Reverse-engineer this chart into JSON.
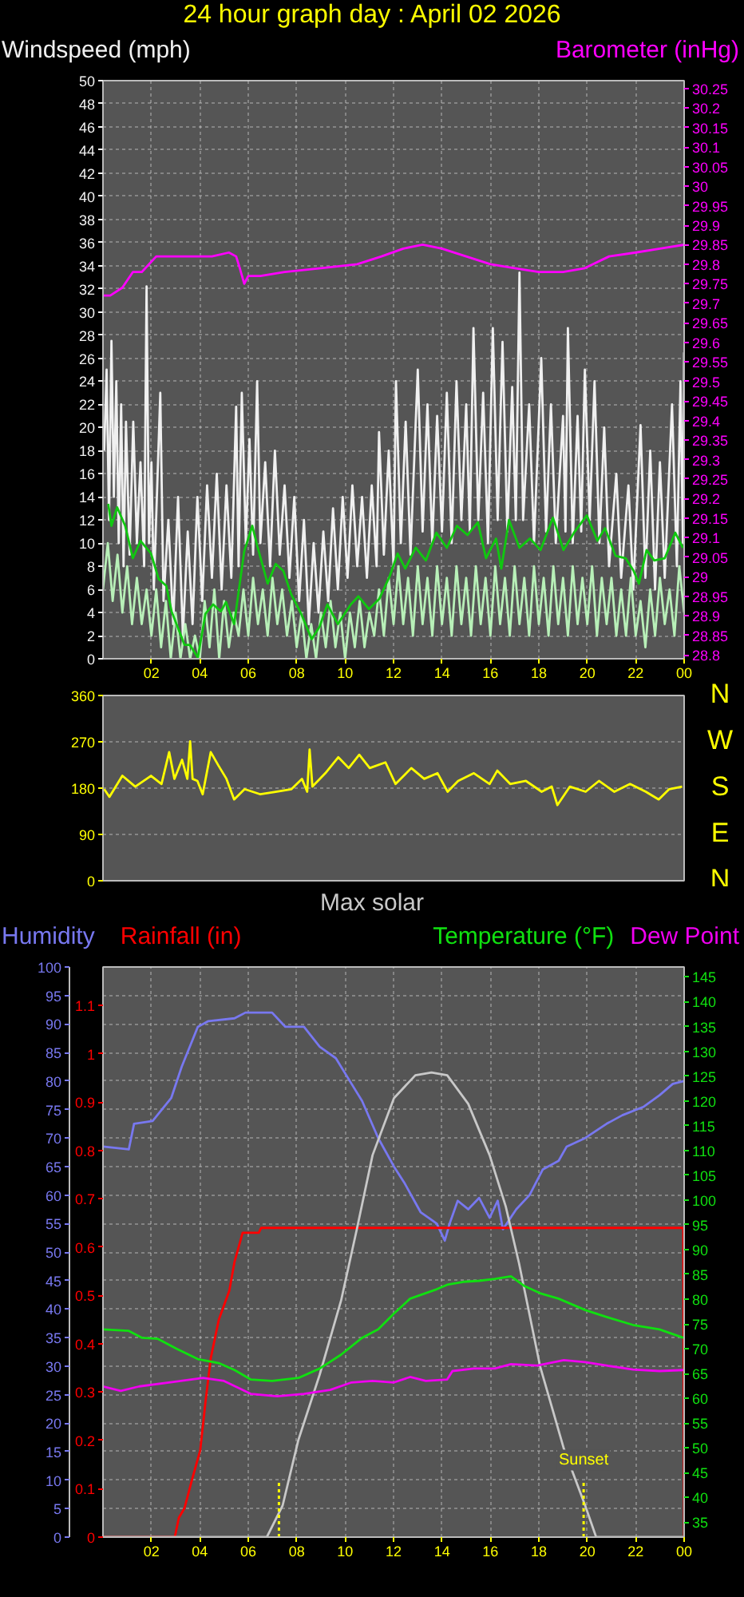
{
  "chart_data": [
    {
      "type": "line",
      "title": "24 hour graph day : April 02 2026",
      "ylabel": "Windspeed (mph)",
      "y2label": "Barometer (inHg)",
      "xlim": [
        "2026-04-02T00:00",
        "2026-04-03T00:00"
      ],
      "xticks": [
        {
          "value": "2026-04-02T02:00",
          "label": "02"
        },
        {
          "value": "2026-04-02T04:00",
          "label": "04"
        },
        {
          "value": "2026-04-02T06:00",
          "label": "06"
        },
        {
          "value": "2026-04-02T08:00",
          "label": "08"
        },
        {
          "value": "2026-04-02T10:00",
          "label": "10"
        },
        {
          "value": "2026-04-02T12:00",
          "label": "12"
        },
        {
          "value": "2026-04-02T14:00",
          "label": "14"
        },
        {
          "value": "2026-04-02T16:00",
          "label": "16"
        },
        {
          "value": "2026-04-02T18:00",
          "label": "18"
        },
        {
          "value": "2026-04-02T20:00",
          "label": "20"
        },
        {
          "value": "2026-04-02T22:00",
          "label": "22"
        },
        {
          "value": "2026-04-03T00:00",
          "label": "00"
        }
      ],
      "ylim": [
        0,
        50
      ],
      "yticks": [
        0,
        2,
        4,
        6,
        8,
        10,
        12,
        14,
        16,
        18,
        20,
        22,
        24,
        26,
        28,
        30,
        32,
        34,
        36,
        38,
        40,
        42,
        44,
        46,
        48,
        50
      ],
      "y2lim": [
        28.79,
        30.27
      ],
      "y2ticks": [
        28.8,
        28.85,
        28.9,
        28.95,
        29,
        29.05,
        29.1,
        29.15,
        29.2,
        29.25,
        29.3,
        29.35,
        29.4,
        29.45,
        29.5,
        29.55,
        29.6,
        29.65,
        29.7,
        29.75,
        29.8,
        29.85,
        29.9,
        29.95,
        30,
        30.05,
        30.1,
        30.15,
        30.2,
        30.25
      ],
      "grid": true,
      "series": [
        {
          "color": "#f0f0f0",
          "x": [
            "2026-04-02T00:03",
            "2026-04-02T00:09",
            "2026-04-02T00:15",
            "2026-04-02T00:21",
            "2026-04-02T00:27",
            "2026-04-02T00:33",
            "2026-04-02T00:39",
            "2026-04-02T00:45",
            "2026-04-02T00:51",
            "2026-04-02T00:57",
            "2026-04-02T01:06",
            "2026-04-02T01:15",
            "2026-04-02T01:24",
            "2026-04-02T01:33",
            "2026-04-02T01:42",
            "2026-04-02T01:48",
            "2026-04-02T01:54",
            "2026-04-02T02:00",
            "2026-04-02T02:06",
            "2026-04-02T02:22",
            "2026-04-02T02:30",
            "2026-04-02T02:42",
            "2026-04-02T02:54",
            "2026-04-02T03:06",
            "2026-04-02T03:18",
            "2026-04-02T03:30",
            "2026-04-02T03:42",
            "2026-04-02T03:54",
            "2026-04-02T04:06",
            "2026-04-02T04:18",
            "2026-04-02T04:30",
            "2026-04-02T04:42",
            "2026-04-02T04:54",
            "2026-04-02T05:06",
            "2026-04-02T05:18",
            "2026-04-02T05:30",
            "2026-04-02T05:36",
            "2026-04-02T05:44",
            "2026-04-02T05:54",
            "2026-04-02T06:03",
            "2026-04-02T06:12",
            "2026-04-02T06:22",
            "2026-04-02T06:30",
            "2026-04-02T06:42",
            "2026-04-02T06:54",
            "2026-04-02T07:06",
            "2026-04-02T07:18",
            "2026-04-02T07:30",
            "2026-04-02T07:42",
            "2026-04-02T07:54",
            "2026-04-02T08:06",
            "2026-04-02T08:18",
            "2026-04-02T08:30",
            "2026-04-02T08:42",
            "2026-04-02T08:54",
            "2026-04-02T09:06",
            "2026-04-02T09:18",
            "2026-04-02T09:30",
            "2026-04-02T09:42",
            "2026-04-02T09:54",
            "2026-04-02T10:06",
            "2026-04-02T10:18",
            "2026-04-02T10:30",
            "2026-04-02T10:42",
            "2026-04-02T10:54",
            "2026-04-02T11:06",
            "2026-04-02T11:18",
            "2026-04-02T11:24",
            "2026-04-02T11:36",
            "2026-04-02T11:48",
            "2026-04-02T12:00",
            "2026-04-02T12:06",
            "2026-04-02T12:18",
            "2026-04-02T12:30",
            "2026-04-02T12:42",
            "2026-04-02T13:00",
            "2026-04-02T13:12",
            "2026-04-02T13:24",
            "2026-04-02T13:36",
            "2026-04-02T13:48",
            "2026-04-02T14:00",
            "2026-04-02T14:12",
            "2026-04-02T14:24",
            "2026-04-02T14:36",
            "2026-04-02T14:48",
            "2026-04-02T15:00",
            "2026-04-02T15:09",
            "2026-04-02T15:18",
            "2026-04-02T15:30",
            "2026-04-02T15:42",
            "2026-04-02T15:54",
            "2026-04-02T16:06",
            "2026-04-02T16:18",
            "2026-04-02T16:30",
            "2026-04-02T16:42",
            "2026-04-02T16:54",
            "2026-04-02T17:03",
            "2026-04-02T17:12",
            "2026-04-02T17:21",
            "2026-04-02T17:36",
            "2026-04-02T17:48",
            "2026-04-02T18:06",
            "2026-04-02T18:18",
            "2026-04-02T18:30",
            "2026-04-02T18:42",
            "2026-04-02T19:00",
            "2026-04-02T19:06",
            "2026-04-02T19:12",
            "2026-04-02T19:24",
            "2026-04-02T19:36",
            "2026-04-02T19:45",
            "2026-04-02T19:54",
            "2026-04-02T20:06",
            "2026-04-02T20:18",
            "2026-04-02T20:30",
            "2026-04-02T20:42",
            "2026-04-02T20:54",
            "2026-04-02T21:12",
            "2026-04-02T21:24",
            "2026-04-02T21:42",
            "2026-04-02T21:54",
            "2026-04-02T22:12",
            "2026-04-02T22:24",
            "2026-04-02T22:36",
            "2026-04-02T22:48",
            "2026-04-02T23:00",
            "2026-04-02T23:12",
            "2026-04-02T23:30",
            "2026-04-02T23:42",
            "2026-04-02T23:51",
            "2026-04-02T23:57",
            "2026-04-03T00:00"
          ],
          "values": [
            18,
            25,
            12,
            27.5,
            14,
            24,
            10,
            22,
            8,
            20.5,
            9,
            20.5,
            10,
            17,
            8,
            32.2,
            10,
            17,
            6,
            23,
            5,
            12,
            3,
            14,
            2,
            11,
            3,
            14,
            5,
            15,
            7,
            16,
            6,
            15,
            7,
            21.8,
            8,
            23,
            10,
            19,
            9,
            24,
            10,
            17,
            8,
            18,
            9,
            15,
            7,
            14,
            5,
            12,
            3,
            10,
            4,
            11,
            5,
            13,
            6,
            14,
            7,
            15,
            8,
            14,
            7,
            15,
            8,
            19.6,
            9,
            18,
            8,
            24,
            10,
            20.5,
            9,
            25,
            11,
            22,
            10,
            21,
            11,
            23,
            10,
            24,
            12,
            22,
            11,
            28.6,
            12,
            23,
            10,
            28.6,
            12,
            27.4,
            11,
            23.5,
            12,
            33.4,
            12,
            22,
            10,
            26,
            11,
            22,
            10,
            21,
            11,
            28.6,
            10,
            21,
            11,
            25,
            12,
            24,
            10,
            20,
            8,
            16,
            7,
            15,
            6,
            20.2,
            7,
            18,
            6,
            17,
            7,
            22,
            8,
            24,
            10,
            26.5
          ]
        },
        {
          "color": "#b8f0b8",
          "x": [
            "2026-04-02T00:00",
            "2026-04-02T00:12",
            "2026-04-02T00:24",
            "2026-04-02T00:36",
            "2026-04-02T00:48",
            "2026-04-02T01:00",
            "2026-04-02T01:12",
            "2026-04-02T01:24",
            "2026-04-02T01:36",
            "2026-04-02T01:48",
            "2026-04-02T02:00",
            "2026-04-02T02:12",
            "2026-04-02T02:24",
            "2026-04-02T02:36",
            "2026-04-02T02:48",
            "2026-04-02T03:00",
            "2026-04-02T03:12",
            "2026-04-02T03:24",
            "2026-04-02T03:36",
            "2026-04-02T03:48",
            "2026-04-02T04:00",
            "2026-04-02T04:12",
            "2026-04-02T04:24",
            "2026-04-02T04:36",
            "2026-04-02T04:48",
            "2026-04-02T05:00",
            "2026-04-02T05:12",
            "2026-04-02T05:24",
            "2026-04-02T05:36",
            "2026-04-02T05:48",
            "2026-04-02T06:00",
            "2026-04-02T06:12",
            "2026-04-02T06:24",
            "2026-04-02T06:36",
            "2026-04-02T06:48",
            "2026-04-02T07:00",
            "2026-04-02T07:12",
            "2026-04-02T07:24",
            "2026-04-02T07:36",
            "2026-04-02T07:48",
            "2026-04-02T08:00",
            "2026-04-02T08:12",
            "2026-04-02T08:24",
            "2026-04-02T08:36",
            "2026-04-02T08:48",
            "2026-04-02T09:00",
            "2026-04-02T09:12",
            "2026-04-02T09:24",
            "2026-04-02T09:36",
            "2026-04-02T09:48",
            "2026-04-02T10:00",
            "2026-04-02T10:12",
            "2026-04-02T10:24",
            "2026-04-02T10:36",
            "2026-04-02T10:48",
            "2026-04-02T11:00",
            "2026-04-02T11:12",
            "2026-04-02T11:24",
            "2026-04-02T11:36",
            "2026-04-02T11:48",
            "2026-04-02T12:00",
            "2026-04-02T12:12",
            "2026-04-02T12:24",
            "2026-04-02T12:36",
            "2026-04-02T12:48",
            "2026-04-02T13:00",
            "2026-04-02T13:12",
            "2026-04-02T13:24",
            "2026-04-02T13:36",
            "2026-04-02T13:48",
            "2026-04-02T14:00",
            "2026-04-02T14:12",
            "2026-04-02T14:24",
            "2026-04-02T14:36",
            "2026-04-02T14:48",
            "2026-04-02T15:00",
            "2026-04-02T15:12",
            "2026-04-02T15:24",
            "2026-04-02T15:36",
            "2026-04-02T15:48",
            "2026-04-02T16:00",
            "2026-04-02T16:12",
            "2026-04-02T16:24",
            "2026-04-02T16:36",
            "2026-04-02T16:48",
            "2026-04-02T17:00",
            "2026-04-02T17:12",
            "2026-04-02T17:24",
            "2026-04-02T17:36",
            "2026-04-02T17:48",
            "2026-04-02T18:00",
            "2026-04-02T18:12",
            "2026-04-02T18:24",
            "2026-04-02T18:36",
            "2026-04-02T18:48",
            "2026-04-02T19:00",
            "2026-04-02T19:12",
            "2026-04-02T19:24",
            "2026-04-02T19:36",
            "2026-04-02T19:48",
            "2026-04-02T20:00",
            "2026-04-02T20:12",
            "2026-04-02T20:24",
            "2026-04-02T20:36",
            "2026-04-02T20:48",
            "2026-04-02T21:00",
            "2026-04-02T21:12",
            "2026-04-02T21:24",
            "2026-04-02T21:36",
            "2026-04-02T21:48",
            "2026-04-02T22:00",
            "2026-04-02T22:12",
            "2026-04-02T22:24",
            "2026-04-02T22:36",
            "2026-04-02T22:48",
            "2026-04-02T23:00",
            "2026-04-02T23:12",
            "2026-04-02T23:24",
            "2026-04-02T23:36",
            "2026-04-02T23:48",
            "2026-04-03T00:00"
          ],
          "values": [
            6,
            10,
            5,
            9,
            4,
            8,
            3,
            7,
            3,
            6,
            2,
            6,
            1,
            5,
            0,
            4,
            0,
            3,
            0,
            2,
            0,
            5,
            1,
            6,
            0,
            5,
            1,
            4,
            2,
            6,
            2,
            7,
            3,
            6,
            2,
            7,
            3,
            6,
            2,
            5,
            1,
            4,
            0,
            3,
            0,
            4,
            1,
            5,
            1,
            4,
            0,
            4,
            1,
            5,
            1,
            4,
            2,
            6,
            2,
            7,
            3,
            8,
            3,
            7,
            2,
            8,
            3,
            7,
            2,
            8,
            3,
            7,
            2,
            8,
            3,
            7,
            2,
            8,
            3,
            7,
            2,
            8,
            3,
            7,
            2,
            8,
            3,
            7,
            2,
            8,
            3,
            7,
            2,
            8,
            3,
            7,
            2,
            8,
            3,
            7,
            3,
            8,
            2,
            7,
            3,
            7,
            2,
            6,
            2,
            7,
            2,
            5,
            1,
            6,
            2,
            7,
            3,
            6,
            2,
            8,
            4
          ]
        },
        {
          "color": "#10c810",
          "x": [
            "2026-04-02T00:13",
            "2026-04-02T00:21",
            "2026-04-02T00:35",
            "2026-04-02T00:55",
            "2026-04-02T01:14",
            "2026-04-02T01:33",
            "2026-04-02T01:59",
            "2026-04-02T02:18",
            "2026-04-02T02:37",
            "2026-04-02T02:50",
            "2026-04-02T03:10",
            "2026-04-02T03:22",
            "2026-04-02T03:35",
            "2026-04-02T03:55",
            "2026-04-02T04:14",
            "2026-04-02T04:33",
            "2026-04-02T04:52",
            "2026-04-02T05:05",
            "2026-04-02T05:25",
            "2026-04-02T05:50",
            "2026-04-02T06:10",
            "2026-04-02T06:22",
            "2026-04-02T06:48",
            "2026-04-02T07:08",
            "2026-04-02T07:27",
            "2026-04-02T07:46",
            "2026-04-02T08:11",
            "2026-04-02T08:37",
            "2026-04-02T08:57",
            "2026-04-02T09:16",
            "2026-04-02T09:42",
            "2026-04-02T10:14",
            "2026-04-02T10:33",
            "2026-04-02T10:59",
            "2026-04-02T11:25",
            "2026-04-02T11:50",
            "2026-04-02T12:10",
            "2026-04-02T12:29",
            "2026-04-02T12:55",
            "2026-04-02T13:20",
            "2026-04-02T13:46",
            "2026-04-02T14:12",
            "2026-04-02T14:37",
            "2026-04-02T15:03",
            "2026-04-02T15:29",
            "2026-04-02T15:49",
            "2026-04-02T16:14",
            "2026-04-02T16:27",
            "2026-04-02T16:46",
            "2026-04-02T17:12",
            "2026-04-02T17:38",
            "2026-04-02T18:04",
            "2026-04-02T18:35",
            "2026-04-02T19:01",
            "2026-04-02T19:27",
            "2026-04-02T19:59",
            "2026-04-02T20:25",
            "2026-04-02T20:44",
            "2026-04-02T21:10",
            "2026-04-02T21:35",
            "2026-04-02T21:55",
            "2026-04-02T22:08",
            "2026-04-02T22:27",
            "2026-04-02T22:46",
            "2026-04-02T23:12",
            "2026-04-02T23:38",
            "2026-04-02T23:57"
          ],
          "values": [
            13.4,
            11.5,
            13.1,
            11.5,
            8.7,
            10.2,
            9.1,
            6.9,
            6.3,
            4.1,
            2.3,
            1.2,
            1.2,
            0.1,
            3.9,
            4.7,
            4.1,
            4.9,
            3.0,
            9.3,
            11.5,
            9.8,
            6.5,
            8.2,
            7.6,
            5.6,
            3.9,
            1.7,
            2.8,
            4.7,
            3.0,
            4.7,
            5.4,
            4.3,
            5.2,
            7.1,
            9.1,
            7.8,
            9.6,
            8.5,
            10.9,
            9.6,
            11.5,
            10.7,
            11.8,
            8.7,
            10.4,
            7.8,
            12.0,
            9.6,
            10.4,
            9.4,
            12.2,
            9.4,
            10.9,
            12.4,
            10.2,
            11.3,
            8.9,
            8.7,
            7.6,
            6.5,
            9.4,
            8.5,
            8.7,
            10.9,
            9.6
          ]
        },
        {
          "color": "#ff00ff",
          "axis": "y2",
          "x": [
            "2026-04-02T00:00",
            "2026-04-02T00:18",
            "2026-04-02T00:48",
            "2026-04-02T01:14",
            "2026-04-02T01:36",
            "2026-04-02T02:12",
            "2026-04-02T03:30",
            "2026-04-02T04:30",
            "2026-04-02T05:12",
            "2026-04-02T05:30",
            "2026-04-02T05:39",
            "2026-04-02T05:50",
            "2026-04-02T06:00",
            "2026-04-02T06:30",
            "2026-04-02T07:30",
            "2026-04-02T09:00",
            "2026-04-02T10:30",
            "2026-04-02T11:30",
            "2026-04-02T12:24",
            "2026-04-02T13:12",
            "2026-04-02T14:00",
            "2026-04-02T15:00",
            "2026-04-02T16:00",
            "2026-04-02T17:00",
            "2026-04-02T18:00",
            "2026-04-02T19:00",
            "2026-04-02T19:54",
            "2026-04-02T20:54",
            "2026-04-02T22:00",
            "2026-04-02T23:00",
            "2026-04-03T00:00"
          ],
          "values": [
            29.72,
            29.72,
            29.74,
            29.78,
            29.78,
            29.82,
            29.82,
            29.82,
            29.83,
            29.82,
            29.79,
            29.75,
            29.77,
            29.77,
            29.78,
            29.79,
            29.8,
            29.82,
            29.84,
            29.85,
            29.84,
            29.82,
            29.8,
            29.79,
            29.78,
            29.78,
            29.79,
            29.82,
            29.83,
            29.84,
            29.85
          ]
        }
      ]
    },
    {
      "type": "line",
      "xlim": [
        "2026-04-02T00:00",
        "2026-04-03T00:00"
      ],
      "ylim": [
        0,
        360
      ],
      "yticks": [
        0,
        90,
        180,
        270,
        360
      ],
      "tick_labels": "y",
      "grid": "y",
      "annotations": [
        "N",
        "W",
        "S",
        "E",
        "N"
      ],
      "series": [
        {
          "color": "#ffff00",
          "x": [
            "2026-04-02T00:03",
            "2026-04-02T00:16",
            "2026-04-02T00:48",
            "2026-04-02T01:20",
            "2026-04-02T01:59",
            "2026-04-02T02:25",
            "2026-04-02T02:44",
            "2026-04-02T02:57",
            "2026-04-02T03:16",
            "2026-04-02T03:29",
            "2026-04-02T03:36",
            "2026-04-02T03:42",
            "2026-04-02T03:54",
            "2026-04-02T04:07",
            "2026-04-02T04:27",
            "2026-04-02T04:46",
            "2026-04-02T05:06",
            "2026-04-02T05:25",
            "2026-04-02T05:51",
            "2026-04-02T06:30",
            "2026-04-02T07:08",
            "2026-04-02T07:47",
            "2026-04-02T08:13",
            "2026-04-02T08:26",
            "2026-04-02T08:32",
            "2026-04-02T08:39",
            "2026-04-02T09:11",
            "2026-04-02T09:43",
            "2026-04-02T10:09",
            "2026-04-02T10:35",
            "2026-04-02T11:01",
            "2026-04-02T11:40",
            "2026-04-02T12:05",
            "2026-04-02T12:44",
            "2026-04-02T13:16",
            "2026-04-02T13:49",
            "2026-04-02T14:14",
            "2026-04-02T14:40",
            "2026-04-02T15:19",
            "2026-04-02T15:58",
            "2026-04-02T16:17",
            "2026-04-02T16:49",
            "2026-04-02T17:28",
            "2026-04-02T18:07",
            "2026-04-02T18:32",
            "2026-04-02T18:46",
            "2026-04-02T19:17",
            "2026-04-02T19:56",
            "2026-04-02T20:29",
            "2026-04-02T21:07",
            "2026-04-02T21:46",
            "2026-04-02T22:25",
            "2026-04-02T22:57",
            "2026-04-02T23:23",
            "2026-04-02T23:55"
          ],
          "values": [
            178,
            163,
            204,
            183,
            204,
            188,
            250,
            198,
            235,
            198,
            271,
            198,
            194,
            168,
            250,
            224,
            198,
            158,
            178,
            168,
            173,
            178,
            198,
            173,
            255,
            183,
            209,
            240,
            219,
            245,
            219,
            230,
            188,
            219,
            198,
            209,
            173,
            194,
            209,
            188,
            214,
            188,
            194,
            173,
            183,
            147,
            183,
            173,
            194,
            173,
            188,
            173,
            158,
            178,
            183
          ]
        }
      ]
    },
    {
      "type": "line",
      "ylabel": "Humidity",
      "y2label": "Rainfall (in)",
      "y3label": "Temperature (°F)",
      "xlim": [
        "2026-04-02T00:00",
        "2026-04-03T00:00"
      ],
      "xticks": [
        {
          "value": "2026-04-02T02:00",
          "label": "02"
        },
        {
          "value": "2026-04-02T04:00",
          "label": "04"
        },
        {
          "value": "2026-04-02T06:00",
          "label": "06"
        },
        {
          "value": "2026-04-02T08:00",
          "label": "08"
        },
        {
          "value": "2026-04-02T10:00",
          "label": "10"
        },
        {
          "value": "2026-04-02T12:00",
          "label": "12"
        },
        {
          "value": "2026-04-02T14:00",
          "label": "14"
        },
        {
          "value": "2026-04-02T16:00",
          "label": "16"
        },
        {
          "value": "2026-04-02T18:00",
          "label": "18"
        },
        {
          "value": "2026-04-02T20:00",
          "label": "20"
        },
        {
          "value": "2026-04-02T22:00",
          "label": "22"
        },
        {
          "value": "2026-04-03T00:00",
          "label": "00"
        }
      ],
      "ylim": [
        0,
        100
      ],
      "yticks": [
        0,
        5,
        10,
        15,
        20,
        25,
        30,
        35,
        40,
        45,
        50,
        55,
        60,
        65,
        70,
        75,
        80,
        85,
        90,
        95,
        100
      ],
      "y2lim": [
        0,
        1.18
      ],
      "y2ticks": [
        0,
        0.1,
        0.2,
        0.3,
        0.4,
        0.5,
        0.6,
        0.7,
        0.8,
        0.9,
        1,
        1.1
      ],
      "y3lim": [
        32,
        147
      ],
      "y3ticks": [
        35,
        40,
        45,
        50,
        55,
        60,
        65,
        70,
        75,
        80,
        85,
        90,
        95,
        100,
        105,
        110,
        115,
        120,
        125,
        130,
        135,
        140,
        145
      ],
      "grid": true,
      "ref_lines": [
        {
          "axis": "x",
          "value": "2026-04-02T07:16",
          "color": "#ffff00",
          "line_style": "dotted"
        },
        {
          "axis": "x",
          "value": "2026-04-02T19:51",
          "label": "Sunset",
          "color": "#ffff00",
          "line_style": "dotted"
        }
      ],
      "series": [
        {
          "color": "#7878f0",
          "x": [
            "2026-04-02T00:00",
            "2026-04-02T01:04",
            "2026-04-02T01:17",
            "2026-04-02T02:03",
            "2026-04-02T02:49",
            "2026-04-02T03:15",
            "2026-04-02T03:55",
            "2026-04-02T04:21",
            "2026-04-02T05:26",
            "2026-04-02T05:53",
            "2026-04-02T06:59",
            "2026-04-02T07:32",
            "2026-04-02T08:18",
            "2026-04-02T08:57",
            "2026-04-02T09:37",
            "2026-04-02T10:16",
            "2026-04-02T10:42",
            "2026-04-02T11:22",
            "2026-04-02T12:01",
            "2026-04-02T12:28",
            "2026-04-02T13:07",
            "2026-04-02T13:47",
            "2026-04-02T14:07",
            "2026-04-02T14:19",
            "2026-04-02T14:39",
            "2026-04-02T15:05",
            "2026-04-02T15:32",
            "2026-04-02T15:58",
            "2026-04-02T16:18",
            "2026-04-02T16:31",
            "2026-04-02T17:04",
            "2026-04-02T17:37",
            "2026-04-02T18:10",
            "2026-04-02T18:49",
            "2026-04-02T19:09",
            "2026-04-02T19:55",
            "2026-04-02T20:48",
            "2026-04-02T21:27",
            "2026-04-02T22:20",
            "2026-04-02T22:59",
            "2026-04-02T23:32",
            "2026-04-03T00:00"
          ],
          "values": [
            68.5,
            68,
            72.5,
            73,
            77,
            82.5,
            89.5,
            90.5,
            91,
            92,
            92,
            89.5,
            89.5,
            86,
            84,
            79.5,
            76.5,
            70,
            65,
            62,
            57,
            55,
            52,
            55,
            59,
            57.5,
            59.5,
            56,
            59,
            54,
            57.5,
            60,
            64.5,
            66,
            68.5,
            70,
            72.5,
            74,
            75.5,
            77.5,
            79.5,
            80
          ]
        },
        {
          "color": "#ff0000",
          "axis": "y2",
          "x": [
            "2026-04-02T00:00",
            "2026-04-02T02:58",
            "2026-04-02T03:08",
            "2026-04-02T03:22",
            "2026-04-02T03:41",
            "2026-04-02T04:01",
            "2026-04-02T04:14",
            "2026-04-02T04:27",
            "2026-04-02T04:47",
            "2026-04-02T05:13",
            "2026-04-02T05:26",
            "2026-04-02T05:46",
            "2026-04-02T06:26",
            "2026-04-02T06:32",
            "2026-04-02T23:58",
            "2026-04-03T00:00"
          ],
          "values": [
            0,
            0,
            0.04,
            0.06,
            0.12,
            0.18,
            0.28,
            0.37,
            0.45,
            0.51,
            0.57,
            0.63,
            0.63,
            0.64,
            0.64,
            0
          ]
        },
        {
          "name": "Max solar",
          "color": "#c8c8c8",
          "x": [
            "2026-04-02T00:00",
            "2026-04-02T06:46",
            "2026-04-02T07:25",
            "2026-04-02T08:04",
            "2026-04-02T08:57",
            "2026-04-02T09:50",
            "2026-04-02T10:29",
            "2026-04-02T11:08",
            "2026-04-02T12:01",
            "2026-04-02T12:54",
            "2026-04-02T13:34",
            "2026-04-02T14:13",
            "2026-04-02T15:05",
            "2026-04-02T15:58",
            "2026-04-02T16:38",
            "2026-04-02T17:11",
            "2026-04-02T18:03",
            "2026-04-02T19:02",
            "2026-04-02T19:55",
            "2026-04-02T20:22",
            "2026-04-03T00:00"
          ],
          "values": [
            0,
            0,
            5.5,
            17,
            28.5,
            41.5,
            54,
            67,
            77,
            81,
            81.5,
            81,
            76,
            67,
            58,
            48,
            30,
            15.5,
            5.5,
            0,
            0
          ]
        },
        {
          "color": "#10e010",
          "axis": "y3",
          "x": [
            "2026-04-02T00:00",
            "2026-04-02T01:04",
            "2026-04-02T01:37",
            "2026-04-02T02:16",
            "2026-04-02T03:02",
            "2026-04-02T03:55",
            "2026-04-02T04:47",
            "2026-04-02T05:26",
            "2026-04-02T06:06",
            "2026-04-02T06:59",
            "2026-04-02T08:04",
            "2026-04-02T08:57",
            "2026-04-02T09:50",
            "2026-04-02T10:42",
            "2026-04-02T11:22",
            "2026-04-02T12:01",
            "2026-04-02T12:41",
            "2026-04-02T13:47",
            "2026-04-02T14:13",
            "2026-04-02T14:53",
            "2026-04-02T15:32",
            "2026-04-02T16:11",
            "2026-04-02T16:51",
            "2026-04-02T17:23",
            "2026-04-02T18:03",
            "2026-04-02T18:49",
            "2026-04-02T19:55",
            "2026-04-02T20:48",
            "2026-04-02T21:53",
            "2026-04-02T22:59",
            "2026-04-02T23:58"
          ],
          "values": [
            73.9,
            73.6,
            72.2,
            72,
            70,
            67.9,
            67.1,
            65.7,
            63.8,
            63.5,
            64.1,
            66,
            68.8,
            72.2,
            73.9,
            77.1,
            80.1,
            82,
            82.9,
            83.5,
            83.7,
            84.1,
            84.6,
            82.7,
            81.2,
            80.1,
            77.8,
            76.4,
            74.8,
            73.9,
            72.2
          ]
        },
        {
          "name": "Dew Point",
          "color": "#f000f0",
          "axis": "y3",
          "x": [
            "2026-04-02T00:00",
            "2026-04-02T00:44",
            "2026-04-02T01:30",
            "2026-04-02T03:02",
            "2026-04-02T04:08",
            "2026-04-02T05:00",
            "2026-04-02T06:06",
            "2026-04-02T07:12",
            "2026-04-02T08:18",
            "2026-04-02T09:23",
            "2026-04-02T10:16",
            "2026-04-02T11:08",
            "2026-04-02T12:01",
            "2026-04-02T12:41",
            "2026-04-02T13:20",
            "2026-04-02T14:13",
            "2026-04-02T14:26",
            "2026-04-02T15:19",
            "2026-04-02T16:11",
            "2026-04-02T16:51",
            "2026-04-02T17:56",
            "2026-04-02T19:02",
            "2026-04-02T19:55",
            "2026-04-02T20:48",
            "2026-04-02T21:53",
            "2026-04-02T22:59",
            "2026-04-03T00:00"
          ],
          "values": [
            62.4,
            61.5,
            62.4,
            63.4,
            64.1,
            63.5,
            60.9,
            60.4,
            60.9,
            61.7,
            63.2,
            63.5,
            63.2,
            64.3,
            63.5,
            63.8,
            65.5,
            66,
            66,
            66.9,
            66.6,
            67.7,
            67.3,
            66.6,
            65.8,
            65.5,
            65.7
          ]
        }
      ]
    }
  ]
}
